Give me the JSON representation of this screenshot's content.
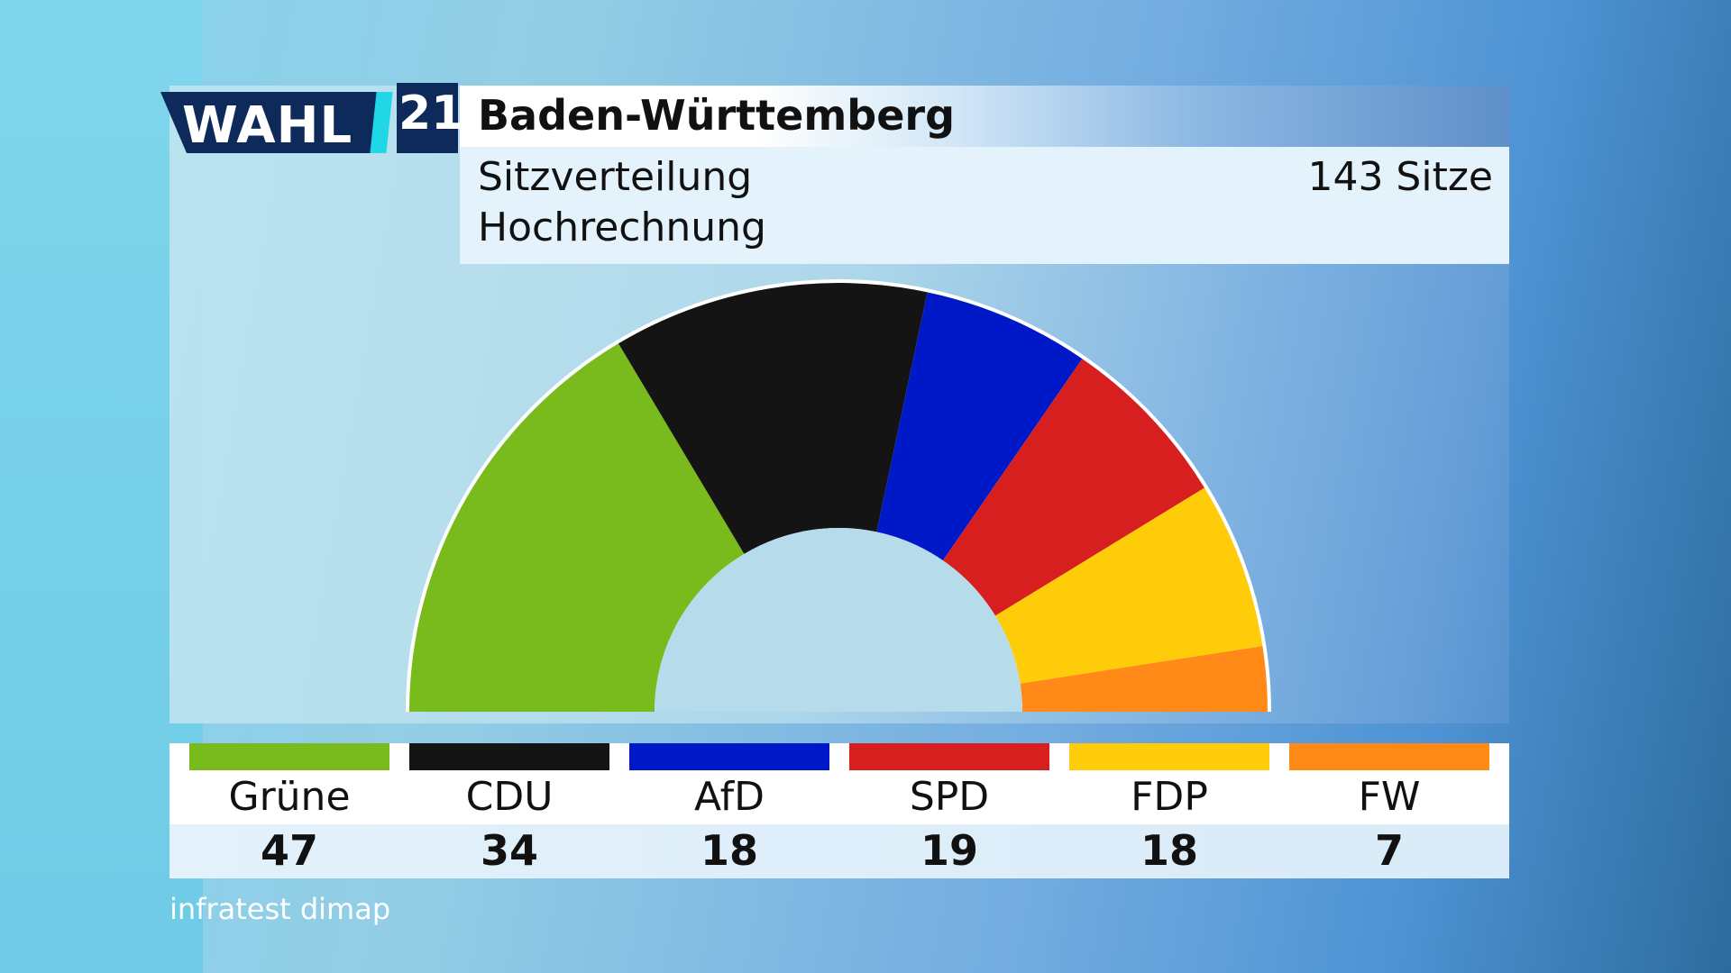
{
  "logo": {
    "wahl": "WAHL",
    "year": "21"
  },
  "title": "Baden-Württemberg",
  "subtitle_line1": "Sitzverteilung",
  "subtitle_line2": "Hochrechnung",
  "total_seats_label": "143 Sitze",
  "source": "infratest dimap",
  "colors": {
    "Grüne": "#79bb1c",
    "CDU": "#141414",
    "AfD": "#0019c8",
    "SPD": "#d71f20",
    "FDP": "#ffcc0a",
    "FW": "#ff8a18"
  },
  "chart_data": {
    "type": "pie",
    "subtype": "parliament-semicircle",
    "title": "Baden-Württemberg",
    "total": 143,
    "categories": [
      "Grüne",
      "CDU",
      "AfD",
      "SPD",
      "FDP",
      "FW"
    ],
    "values": [
      47,
      34,
      18,
      19,
      18,
      7
    ],
    "value_labels": [
      "47",
      "34",
      "18",
      "19",
      "18",
      "7"
    ]
  }
}
